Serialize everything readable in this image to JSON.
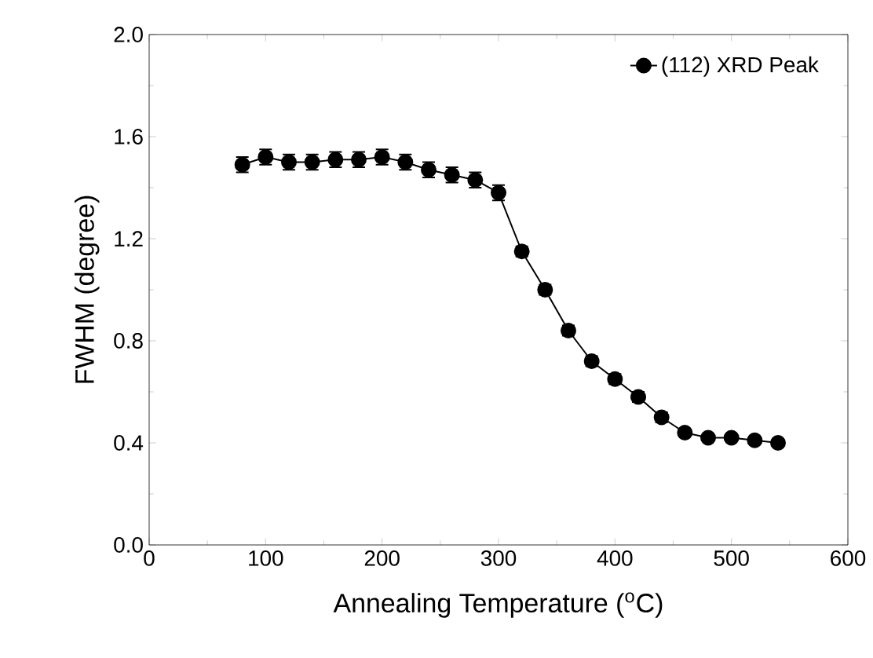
{
  "chart_data": {
    "type": "line",
    "xlabel": "Annealing Temperature ($^{o}$C)",
    "ylabel": "FWHM (degree)",
    "x": [
      80,
      100,
      120,
      140,
      160,
      180,
      200,
      220,
      240,
      260,
      280,
      300,
      320,
      340,
      360,
      380,
      400,
      420,
      440,
      460,
      480,
      500,
      520,
      540
    ],
    "series": [
      {
        "name": "(112) XRD Peak",
        "color": "#000000",
        "values": [
          1.49,
          1.52,
          1.5,
          1.5,
          1.51,
          1.51,
          1.52,
          1.5,
          1.47,
          1.45,
          1.43,
          1.38,
          1.15,
          1.0,
          0.84,
          0.72,
          0.65,
          0.58,
          0.5,
          0.44,
          0.42,
          0.42,
          0.41,
          0.4
        ],
        "errors": [
          0.03,
          0.03,
          0.03,
          0.03,
          0.03,
          0.03,
          0.03,
          0.03,
          0.03,
          0.03,
          0.03,
          0.03,
          0.02,
          0.02,
          0.02,
          0.02,
          0.02,
          0.02,
          0.02,
          0.01,
          0.01,
          0.01,
          0.01,
          0.01
        ]
      }
    ],
    "xlim": [
      0,
      600
    ],
    "xticks": [
      0,
      100,
      200,
      300,
      400,
      500,
      600
    ],
    "ylim": [
      0.0,
      2.0
    ],
    "yticks": [
      {
        "value": 0.0,
        "label": "0.0"
      },
      {
        "value": 0.4,
        "label": "0.4"
      },
      {
        "value": 0.8,
        "label": "0.8"
      },
      {
        "value": 1.2,
        "label": "1.2"
      },
      {
        "value": 1.6,
        "label": "1.6"
      },
      {
        "value": 2.0,
        "label": "2.0"
      }
    ],
    "marker": "circle",
    "line_style": "solid",
    "legend": "top right",
    "grid": false
  }
}
